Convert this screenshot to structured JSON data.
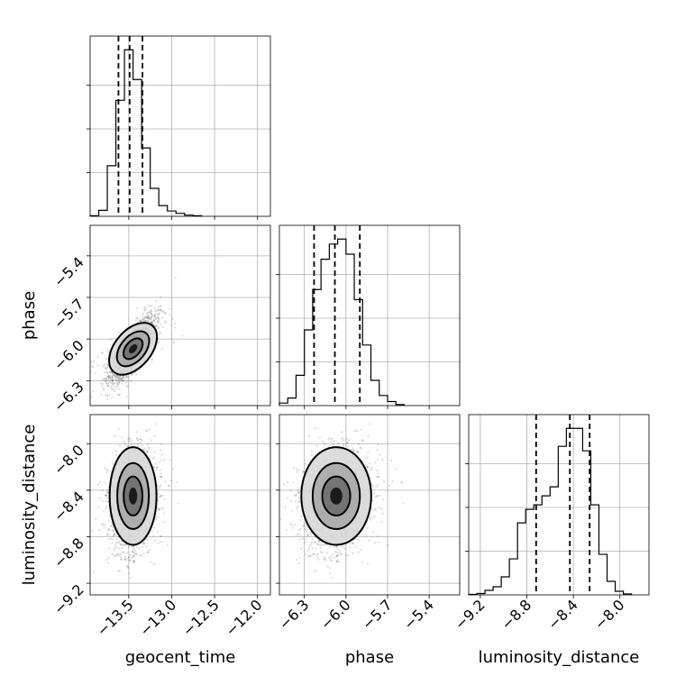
{
  "chart_data": {
    "type": "corner",
    "parameters": [
      "geocent_time",
      "phase",
      "luminosity_distance"
    ],
    "axis_labels": {
      "x": [
        "geocent_time",
        "phase",
        "luminosity_distance"
      ],
      "y": [
        "phase",
        "luminosity_distance"
      ]
    },
    "ranges": {
      "geocent_time": [
        -13.95,
        -11.85
      ],
      "phase": [
        -6.48,
        -5.18
      ],
      "luminosity_distance": [
        -9.3,
        -7.75
      ]
    },
    "ticks": {
      "geocent_time": [
        {
          "value": -13.5,
          "label": "−13.5"
        },
        {
          "value": -13.0,
          "label": "−13.0"
        },
        {
          "value": -12.5,
          "label": "−12.5"
        },
        {
          "value": -12.0,
          "label": "−12.0"
        }
      ],
      "phase": [
        {
          "value": -6.3,
          "label": "−6.3"
        },
        {
          "value": -6.0,
          "label": "−6.0"
        },
        {
          "value": -5.7,
          "label": "−5.7"
        },
        {
          "value": -5.4,
          "label": "−5.4"
        }
      ],
      "luminosity_distance": [
        {
          "value": -9.2,
          "label": "−9.2"
        },
        {
          "value": -8.8,
          "label": "−8.8"
        },
        {
          "value": -8.4,
          "label": "−8.4"
        },
        {
          "value": -8.0,
          "label": "−8.0"
        }
      ]
    },
    "histograms": {
      "geocent_time": {
        "bin_edges": [
          -13.95,
          -13.85,
          -13.75,
          -13.65,
          -13.55,
          -13.45,
          -13.35,
          -13.25,
          -13.15,
          -13.05,
          -12.95,
          -12.85,
          -12.75,
          -12.65
        ],
        "counts": [
          1,
          10,
          85,
          195,
          280,
          230,
          115,
          47,
          18,
          9,
          5,
          2,
          1
        ]
      },
      "phase": {
        "bin_edges": [
          -6.48,
          -6.42,
          -6.36,
          -6.3,
          -6.24,
          -6.18,
          -6.12,
          -6.06,
          -6.0,
          -5.94,
          -5.88,
          -5.82,
          -5.76,
          -5.7,
          -5.64,
          -5.58
        ],
        "counts": [
          5,
          15,
          60,
          150,
          230,
          290,
          320,
          330,
          300,
          210,
          120,
          50,
          20,
          8,
          2
        ]
      },
      "luminosity_distance": {
        "bin_edges": [
          -9.3,
          -9.23,
          -9.16,
          -9.09,
          -9.02,
          -8.95,
          -8.88,
          -8.81,
          -8.74,
          -8.67,
          -8.6,
          -8.53,
          -8.46,
          -8.39,
          -8.32,
          -8.25,
          -8.18,
          -8.11,
          -8.04,
          -7.97,
          -7.9
        ],
        "counts": [
          1,
          3,
          10,
          18,
          40,
          80,
          160,
          190,
          200,
          220,
          240,
          330,
          370,
          370,
          320,
          200,
          90,
          30,
          8,
          2
        ]
      }
    },
    "quantiles": {
      "geocent_time": [
        -13.62,
        -13.49,
        -13.34
      ],
      "phase": [
        -6.23,
        -6.08,
        -5.9
      ],
      "luminosity_distance": [
        -8.72,
        -8.43,
        -8.26
      ]
    },
    "pairs": [
      {
        "x": "geocent_time",
        "y": "phase",
        "center": [
          -13.45,
          -6.07
        ],
        "correlation": 0.8
      },
      {
        "x": "geocent_time",
        "y": "luminosity_distance",
        "center": [
          -13.45,
          -8.45
        ],
        "correlation": 0.1
      },
      {
        "x": "phase",
        "y": "luminosity_distance",
        "center": [
          -6.07,
          -8.45
        ],
        "correlation": 0.1
      }
    ],
    "grid": true
  }
}
